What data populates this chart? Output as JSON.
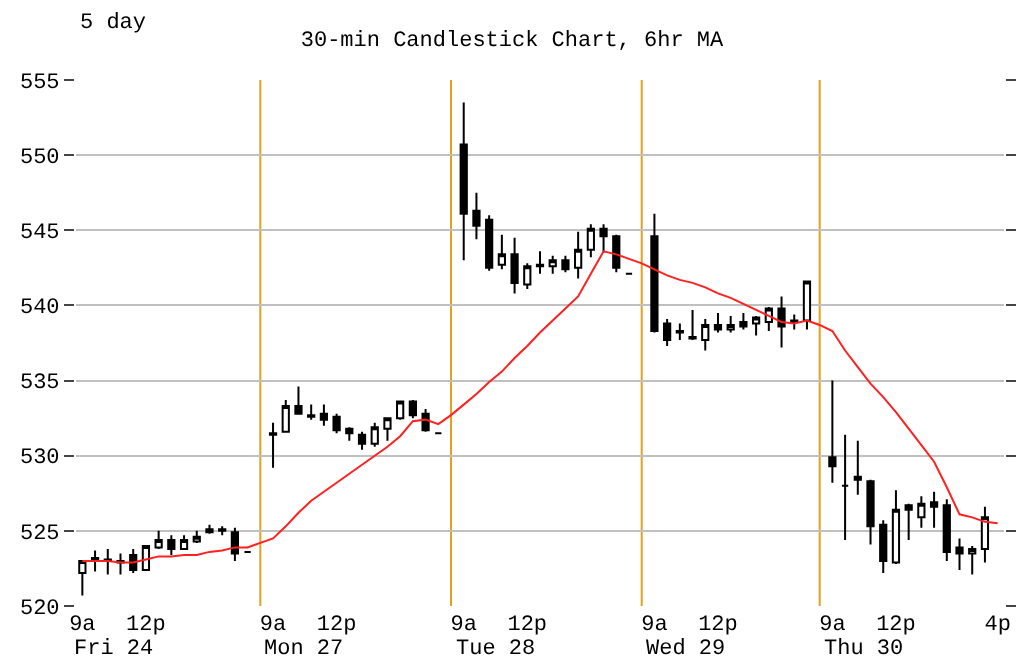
{
  "chart_data": {
    "type": "candlestick",
    "title": "30-min Candlestick Chart, 6hr MA",
    "subtitle": "5 day",
    "categories": [
      "9a",
      null,
      null,
      null,
      null,
      "12p",
      null,
      null,
      null,
      null,
      null,
      null,
      null,
      null,
      null,
      "9a",
      null,
      null,
      null,
      null,
      "12p",
      null,
      null,
      null,
      null,
      null,
      null,
      null,
      null,
      null,
      "9a",
      null,
      null,
      null,
      null,
      "12p",
      null,
      null,
      null,
      null,
      null,
      null,
      null,
      null,
      null,
      "9a",
      null,
      null,
      null,
      null,
      "12p",
      null,
      null,
      null,
      null,
      null,
      null,
      null,
      null,
      "9a",
      null,
      null,
      null,
      null,
      "12p",
      null,
      null,
      null,
      null,
      null,
      null,
      null,
      "4p"
    ],
    "ohlc": [
      [
        522.2,
        523.0,
        520.7,
        523.0
      ],
      [
        523.2,
        523.7,
        522.3,
        523.0
      ],
      [
        523.1,
        523.8,
        522.1,
        523.0
      ],
      [
        523.0,
        523.5,
        522.1,
        522.9
      ],
      [
        523.4,
        523.8,
        522.2,
        522.4
      ],
      [
        522.4,
        524.0,
        522.4,
        524.0
      ],
      [
        523.9,
        525.0,
        523.8,
        524.4
      ],
      [
        524.4,
        524.7,
        523.4,
        523.8
      ],
      [
        523.8,
        524.7,
        523.8,
        524.4
      ],
      [
        524.3,
        525.0,
        524.2,
        524.6
      ],
      [
        524.9,
        525.4,
        524.8,
        525.1
      ],
      [
        525.1,
        525.3,
        524.7,
        525.0
      ],
      [
        524.9,
        525.2,
        523.0,
        523.5
      ],
      [
        523.6,
        523.6,
        523.6,
        523.6
      ],
      null,
      [
        531.5,
        532.2,
        529.2,
        531.4
      ],
      [
        531.6,
        533.7,
        531.6,
        533.3
      ],
      [
        533.3,
        534.6,
        532.8,
        532.8
      ],
      [
        532.7,
        533.4,
        532.4,
        532.6
      ],
      [
        532.8,
        533.4,
        532.0,
        532.4
      ],
      [
        532.6,
        532.8,
        531.5,
        531.7
      ],
      [
        531.8,
        531.9,
        531.0,
        531.5
      ],
      [
        531.4,
        531.6,
        530.4,
        530.8
      ],
      [
        530.8,
        532.2,
        530.6,
        531.9
      ],
      [
        531.8,
        532.5,
        531.0,
        532.5
      ],
      [
        532.5,
        533.6,
        532.4,
        533.6
      ],
      [
        533.6,
        533.7,
        532.5,
        532.7
      ],
      [
        532.8,
        533.1,
        531.6,
        531.7
      ],
      [
        531.5,
        531.5,
        531.5,
        531.5
      ],
      null,
      [
        550.7,
        553.5,
        543.0,
        546.1
      ],
      [
        546.3,
        547.5,
        544.4,
        545.3
      ],
      [
        545.7,
        546.0,
        542.3,
        542.5
      ],
      [
        542.7,
        544.7,
        542.4,
        543.4
      ],
      [
        543.4,
        544.5,
        540.8,
        541.5
      ],
      [
        541.4,
        542.8,
        541.1,
        542.6
      ],
      [
        542.7,
        543.6,
        542.1,
        542.6
      ],
      [
        542.6,
        543.3,
        542.1,
        543.0
      ],
      [
        543.0,
        543.3,
        542.2,
        542.4
      ],
      [
        542.5,
        544.9,
        541.8,
        543.7
      ],
      [
        543.7,
        545.4,
        543.2,
        545.1
      ],
      [
        545.1,
        545.4,
        543.5,
        544.6
      ],
      [
        544.6,
        544.7,
        542.2,
        542.5
      ],
      [
        542.1,
        542.1,
        542.1,
        542.1
      ],
      null,
      [
        544.6,
        546.1,
        538.2,
        538.3
      ],
      [
        538.8,
        539.1,
        537.3,
        537.7
      ],
      [
        538.3,
        538.8,
        537.7,
        538.2
      ],
      [
        537.9,
        539.7,
        537.7,
        537.8
      ],
      [
        537.7,
        539.1,
        537.0,
        538.7
      ],
      [
        538.7,
        539.5,
        538.2,
        538.4
      ],
      [
        538.4,
        539.3,
        538.2,
        538.7
      ],
      [
        538.9,
        539.5,
        538.4,
        538.6
      ],
      [
        538.8,
        539.3,
        538.0,
        539.2
      ],
      [
        538.9,
        539.9,
        538.3,
        539.8
      ],
      [
        539.8,
        540.6,
        537.2,
        538.6
      ],
      [
        539.0,
        539.4,
        538.4,
        538.9
      ],
      [
        539.0,
        541.6,
        538.4,
        541.6
      ],
      null,
      [
        529.9,
        535.0,
        528.2,
        529.3
      ],
      [
        528.0,
        531.4,
        524.4,
        528.0
      ],
      [
        528.6,
        531.0,
        527.4,
        528.4
      ],
      [
        528.3,
        528.4,
        524.1,
        525.3
      ],
      [
        525.4,
        525.7,
        522.2,
        523.0
      ],
      [
        522.9,
        527.7,
        522.8,
        526.4
      ],
      [
        526.7,
        526.8,
        524.4,
        526.4
      ],
      [
        525.9,
        527.3,
        525.2,
        526.8
      ],
      [
        526.9,
        527.6,
        525.2,
        526.6
      ],
      [
        526.7,
        527.1,
        523.0,
        523.6
      ],
      [
        523.9,
        524.5,
        522.4,
        523.5
      ],
      [
        523.5,
        524.0,
        522.1,
        523.8
      ],
      [
        523.8,
        526.6,
        522.9,
        525.9
      ],
      null
    ],
    "series": [
      {
        "type": "line",
        "color": "#ff2020",
        "values": [
          523.0,
          523.0,
          523.0,
          522.9,
          522.9,
          523.1,
          523.3,
          523.3,
          523.4,
          523.4,
          523.6,
          523.7,
          523.9,
          523.9,
          524.2,
          524.5,
          525.3,
          526.2,
          527.0,
          527.6,
          528.2,
          528.8,
          529.4,
          530.0,
          530.6,
          531.3,
          532.3,
          532.4,
          532.1,
          532.7,
          533.4,
          534.1,
          534.9,
          535.6,
          536.5,
          537.3,
          538.2,
          539.0,
          539.8,
          540.6,
          542.1,
          543.6,
          543.4,
          543.1,
          542.8,
          542.4,
          542.0,
          541.7,
          541.5,
          541.2,
          540.8,
          540.5,
          540.1,
          539.7,
          539.3,
          538.9,
          538.8,
          539.0,
          538.7,
          538.3,
          537.0,
          535.9,
          534.8,
          533.9,
          532.9,
          531.8,
          530.7,
          529.6,
          527.9,
          526.1,
          525.9,
          525.6,
          525.5
        ]
      }
    ],
    "ylim": [
      520,
      555
    ],
    "yticks": [
      520,
      525,
      530,
      535,
      540,
      545,
      550,
      555
    ],
    "grid": "y",
    "annotations": [
      "Fri 24",
      "Mon 27",
      "Tue 28",
      "Wed 29",
      "Thu 30"
    ]
  }
}
